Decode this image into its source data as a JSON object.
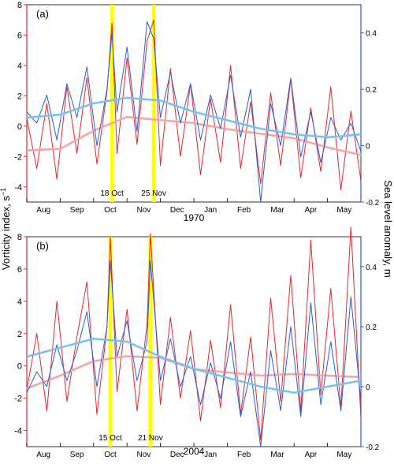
{
  "figure": {
    "y_left_label": "Vorticity index, s",
    "y_left_label_sup": "−1",
    "y_right_label": "Sea level anomaly, m",
    "colors": {
      "vorticity": "#e8262a",
      "vorticity_smooth": "#f4a6a6",
      "sea_level": "#2b5cd6",
      "sea_level_smooth": "#78c3ec",
      "highlight": "#ffff00",
      "right_axis": "#2b5cd6",
      "left_axis": "#e8262a"
    }
  },
  "chart_data": [
    {
      "type": "line",
      "panel_label": "(a)",
      "year_label": "1970",
      "x_ticks": [
        "Aug",
        "Sep",
        "Oct",
        "Nov",
        "Dec",
        "Jan",
        "Feb",
        "Mar",
        "Apr",
        "May"
      ],
      "y_left": {
        "ticks": [
          "8",
          "6",
          "4",
          "2",
          "0",
          "-2",
          "-4"
        ],
        "ylim": [
          -5,
          8
        ]
      },
      "y_right": {
        "ticks": [
          "0.4",
          "0.2",
          "0",
          "-0.2"
        ],
        "ylim": [
          -0.2,
          0.5
        ]
      },
      "events": [
        {
          "label": "18 Oct",
          "month": 2.55
        },
        {
          "label": "25 Nov",
          "month": 3.8
        }
      ],
      "series": [
        {
          "role": "vorticity",
          "x": [
            0,
            0.3,
            0.6,
            0.9,
            1.2,
            1.5,
            1.8,
            2.1,
            2.4,
            2.55,
            2.7,
            3.0,
            3.3,
            3.6,
            3.8,
            4.0,
            4.3,
            4.6,
            4.9,
            5.2,
            5.5,
            5.8,
            6.1,
            6.4,
            6.7,
            7.0,
            7.3,
            7.6,
            7.9,
            8.2,
            8.5,
            8.8,
            9.1,
            9.4,
            9.7,
            10.0
          ],
          "y": [
            0.5,
            -2.8,
            1.5,
            -3.5,
            2.6,
            -1.8,
            3.2,
            -2.5,
            2.3,
            6.8,
            -1.8,
            4.5,
            -1.2,
            5.6,
            7.0,
            -2.6,
            3.8,
            -2.0,
            2.8,
            -3.2,
            1.8,
            -2.4,
            4.0,
            -2.8,
            1.6,
            -3.8,
            2.2,
            -2.6,
            3.1,
            -3.4,
            1.2,
            -3.0,
            2.6,
            -4.2,
            1.0,
            -3.6
          ]
        },
        {
          "role": "vorticity_smooth",
          "x": [
            0,
            1,
            2,
            3,
            4,
            5,
            6,
            7,
            8,
            9,
            10
          ],
          "y": [
            -1.6,
            -1.5,
            -0.3,
            0.6,
            0.4,
            0.2,
            -0.2,
            -0.5,
            -0.8,
            -1.4,
            -1.9
          ]
        },
        {
          "role": "sea_level",
          "x": [
            0,
            0.3,
            0.6,
            0.9,
            1.2,
            1.5,
            1.8,
            2.1,
            2.4,
            2.55,
            2.7,
            3.0,
            3.3,
            3.6,
            3.8,
            4.0,
            4.3,
            4.6,
            4.9,
            5.2,
            5.5,
            5.8,
            6.1,
            6.4,
            6.7,
            7.0,
            7.3,
            7.6,
            7.9,
            8.2,
            8.5,
            8.8,
            9.1,
            9.4,
            9.7,
            10.0
          ],
          "y": [
            0.12,
            0.08,
            0.18,
            0.02,
            0.22,
            0.1,
            0.28,
            0.0,
            0.2,
            0.4,
            0.12,
            0.35,
            0.05,
            0.44,
            0.38,
            0.1,
            0.26,
            0.08,
            0.22,
            0.02,
            0.18,
            0.06,
            0.25,
            0.03,
            0.2,
            -0.2,
            0.15,
            0.0,
            0.24,
            -0.04,
            0.12,
            -0.06,
            0.1,
            0.02,
            0.08,
            -0.02
          ]
        },
        {
          "role": "sea_level_smooth",
          "x": [
            0,
            1,
            2,
            3,
            4,
            5,
            6,
            7,
            8,
            9,
            10
          ],
          "y": [
            0.1,
            0.11,
            0.15,
            0.17,
            0.16,
            0.12,
            0.09,
            0.06,
            0.04,
            0.03,
            0.04
          ]
        }
      ]
    },
    {
      "type": "line",
      "panel_label": "(b)",
      "year_label": "2004",
      "x_ticks": [
        "Aug",
        "Sep",
        "Oct",
        "Nov",
        "Dec",
        "Jan",
        "Feb",
        "Mar",
        "Apr",
        "May"
      ],
      "y_left": {
        "ticks": [
          "8",
          "6",
          "4",
          "2",
          "0",
          "-2",
          "-4"
        ],
        "ylim": [
          -5,
          8
        ]
      },
      "y_right": {
        "ticks": [
          "0.4",
          "0.2",
          "0",
          "-0.2"
        ],
        "ylim": [
          -0.2,
          0.5
        ]
      },
      "events": [
        {
          "label": "15 Oct",
          "month": 2.5
        },
        {
          "label": "21 Nov",
          "month": 3.7
        }
      ],
      "series": [
        {
          "role": "vorticity",
          "x": [
            0,
            0.3,
            0.6,
            0.9,
            1.2,
            1.5,
            1.8,
            2.1,
            2.4,
            2.5,
            2.7,
            3.0,
            3.3,
            3.6,
            3.7,
            4.0,
            4.3,
            4.6,
            4.9,
            5.2,
            5.5,
            5.8,
            6.1,
            6.4,
            6.7,
            7.0,
            7.3,
            7.6,
            7.9,
            8.2,
            8.5,
            8.8,
            9.1,
            9.4,
            9.7,
            10.0
          ],
          "y": [
            -1.5,
            2.0,
            -2.8,
            4.0,
            -2.2,
            1.8,
            5.2,
            -3.0,
            2.4,
            8.0,
            -1.6,
            3.5,
            -2.8,
            2.6,
            8.2,
            -2.4,
            3.0,
            -2.0,
            2.2,
            -3.4,
            1.6,
            -2.6,
            3.8,
            -3.0,
            1.8,
            -4.6,
            4.2,
            -2.2,
            5.6,
            -2.8,
            7.8,
            -1.8,
            4.8,
            -2.6,
            8.6,
            -3.2
          ]
        },
        {
          "role": "vorticity_smooth",
          "x": [
            0,
            1,
            2,
            3,
            4,
            5,
            6,
            7,
            8,
            9,
            10
          ],
          "y": [
            -1.4,
            -0.6,
            0.3,
            0.6,
            0.5,
            -0.2,
            -0.4,
            -0.6,
            -0.5,
            -0.6,
            -0.7
          ]
        },
        {
          "role": "sea_level",
          "x": [
            0,
            0.3,
            0.6,
            0.9,
            1.2,
            1.5,
            1.8,
            2.1,
            2.4,
            2.5,
            2.7,
            3.0,
            3.3,
            3.6,
            3.7,
            4.0,
            4.3,
            4.6,
            4.9,
            5.2,
            5.5,
            5.8,
            6.1,
            6.4,
            6.7,
            7.0,
            7.3,
            7.6,
            7.9,
            8.2,
            8.5,
            8.8,
            9.1,
            9.4,
            9.7,
            10.0
          ],
          "y": [
            -0.02,
            0.05,
            0.0,
            0.14,
            0.02,
            0.12,
            0.25,
            0.0,
            0.2,
            0.42,
            0.1,
            0.22,
            0.02,
            0.15,
            0.42,
            0.02,
            0.16,
            0.0,
            0.1,
            -0.06,
            0.08,
            -0.04,
            0.15,
            -0.1,
            0.05,
            -0.2,
            0.12,
            -0.08,
            0.2,
            -0.1,
            0.28,
            -0.06,
            0.15,
            -0.08,
            0.3,
            -0.05
          ]
        },
        {
          "role": "sea_level_smooth",
          "x": [
            0,
            1,
            2,
            3,
            4,
            5,
            6,
            7,
            8,
            9,
            10
          ],
          "y": [
            0.1,
            0.13,
            0.16,
            0.15,
            0.1,
            0.06,
            0.03,
            0.0,
            -0.02,
            0.0,
            0.02
          ]
        }
      ]
    }
  ]
}
